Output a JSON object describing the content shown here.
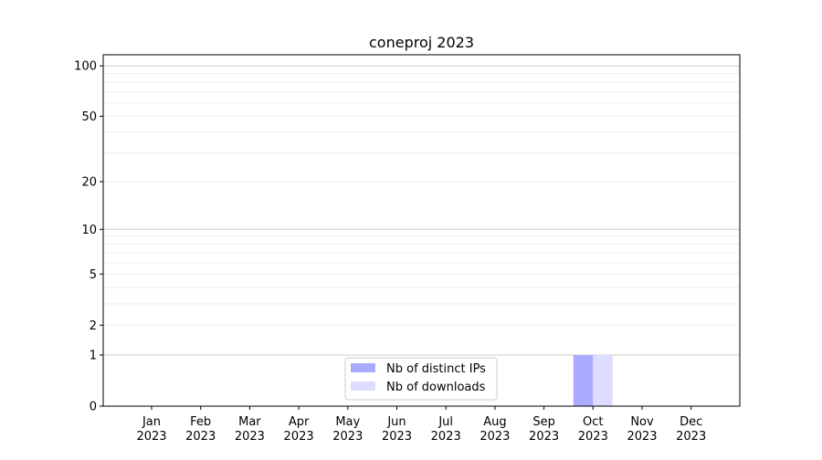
{
  "chart_data": {
    "type": "bar",
    "title": "coneproj 2023",
    "xlabel": "",
    "ylabel": "",
    "y_scale": "log(1+y)",
    "ylim": [
      0,
      116
    ],
    "y_ticks": [
      0,
      1,
      2,
      5,
      10,
      20,
      50,
      100
    ],
    "y_tick_labels": [
      "0",
      "1",
      "2",
      "5",
      "10",
      "20",
      "50",
      "100"
    ],
    "grid": true,
    "categories": [
      "Jan\n2023",
      "Feb\n2023",
      "Mar\n2023",
      "Apr\n2023",
      "May\n2023",
      "Jun\n2023",
      "Jul\n2023",
      "Aug\n2023",
      "Sep\n2023",
      "Oct\n2023",
      "Nov\n2023",
      "Dec\n2023"
    ],
    "series": [
      {
        "name": "Nb of distinct IPs",
        "color": "#aaaaff",
        "values": [
          0,
          0,
          0,
          0,
          0,
          0,
          0,
          0,
          0,
          1,
          0,
          0
        ]
      },
      {
        "name": "Nb of downloads",
        "color": "#ddddff",
        "values": [
          0,
          0,
          0,
          0,
          0,
          0,
          0,
          0,
          0,
          1,
          0,
          0
        ]
      }
    ],
    "legend_placement": "lower-center"
  }
}
